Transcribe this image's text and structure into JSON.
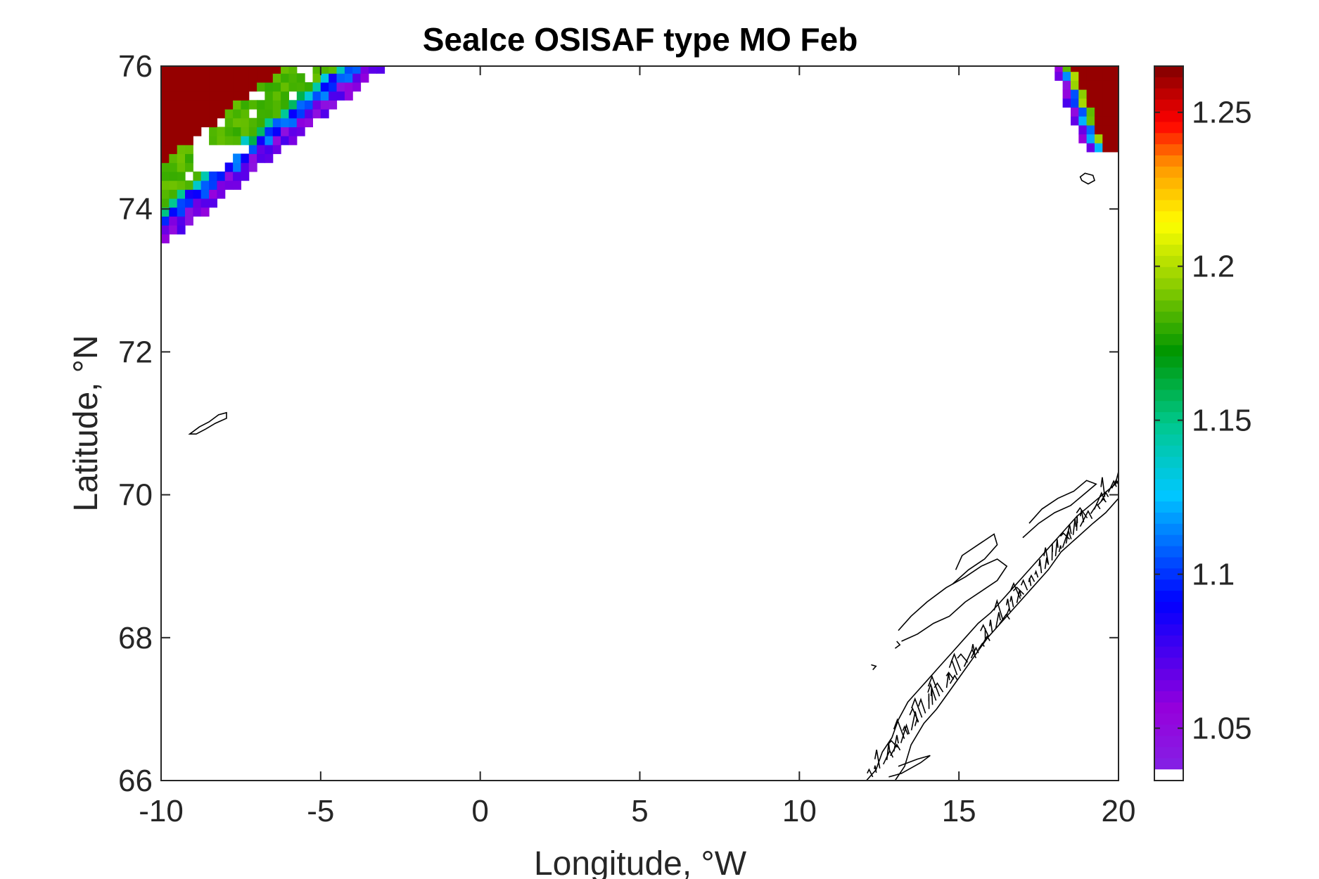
{
  "chart_data": {
    "type": "heatmap",
    "title": "SeaIce OSISAF type MO Feb",
    "xlabel": "Longitude, °W",
    "ylabel": "Latitude, °N",
    "xlim": [
      -10,
      20
    ],
    "ylim": [
      66,
      76
    ],
    "xticks": [
      -10,
      -5,
      0,
      5,
      10,
      15,
      20
    ],
    "xtick_labels": [
      "-10",
      "-5",
      "0",
      "5",
      "10",
      "15",
      "20"
    ],
    "yticks": [
      66,
      68,
      70,
      72,
      74,
      76
    ],
    "ytick_labels": [
      "66",
      "68",
      "70",
      "72",
      "74",
      "76"
    ],
    "colorbar": {
      "range": [
        1.033,
        1.265
      ],
      "ticks": [
        1.05,
        1.1,
        1.15,
        1.2,
        1.25
      ],
      "tick_labels": [
        "1.05",
        "1.1",
        "1.15",
        "1.2",
        "1.25"
      ],
      "colormap": "jet-like (violet-blue-cyan-green-yellow-red-darkred)"
    },
    "grid": false,
    "ice_regions": [
      {
        "name": "NW ice edge (Greenland side)",
        "lon_range": [
          -10,
          -2.7
        ],
        "lat_range": [
          73.4,
          76
        ],
        "values_note": "dark-red 1.26 core near -10..-6 at 74.5-76, green ~1.18 band, blue/violet 1.05-1.1 margin"
      },
      {
        "name": "NE ice edge (Svalbard side)",
        "lon_range": [
          17.5,
          20
        ],
        "lat_range": [
          74.8,
          76
        ],
        "values_note": "dark-red 1.26 core near 19-20, green/blue/violet margin to the west"
      }
    ],
    "coastlines": [
      "Jan Mayen (~-8.5, 71)",
      "Bear Island (~19, 74.4)",
      "Northern Norway coast (12-20, 66-70.2)"
    ]
  }
}
